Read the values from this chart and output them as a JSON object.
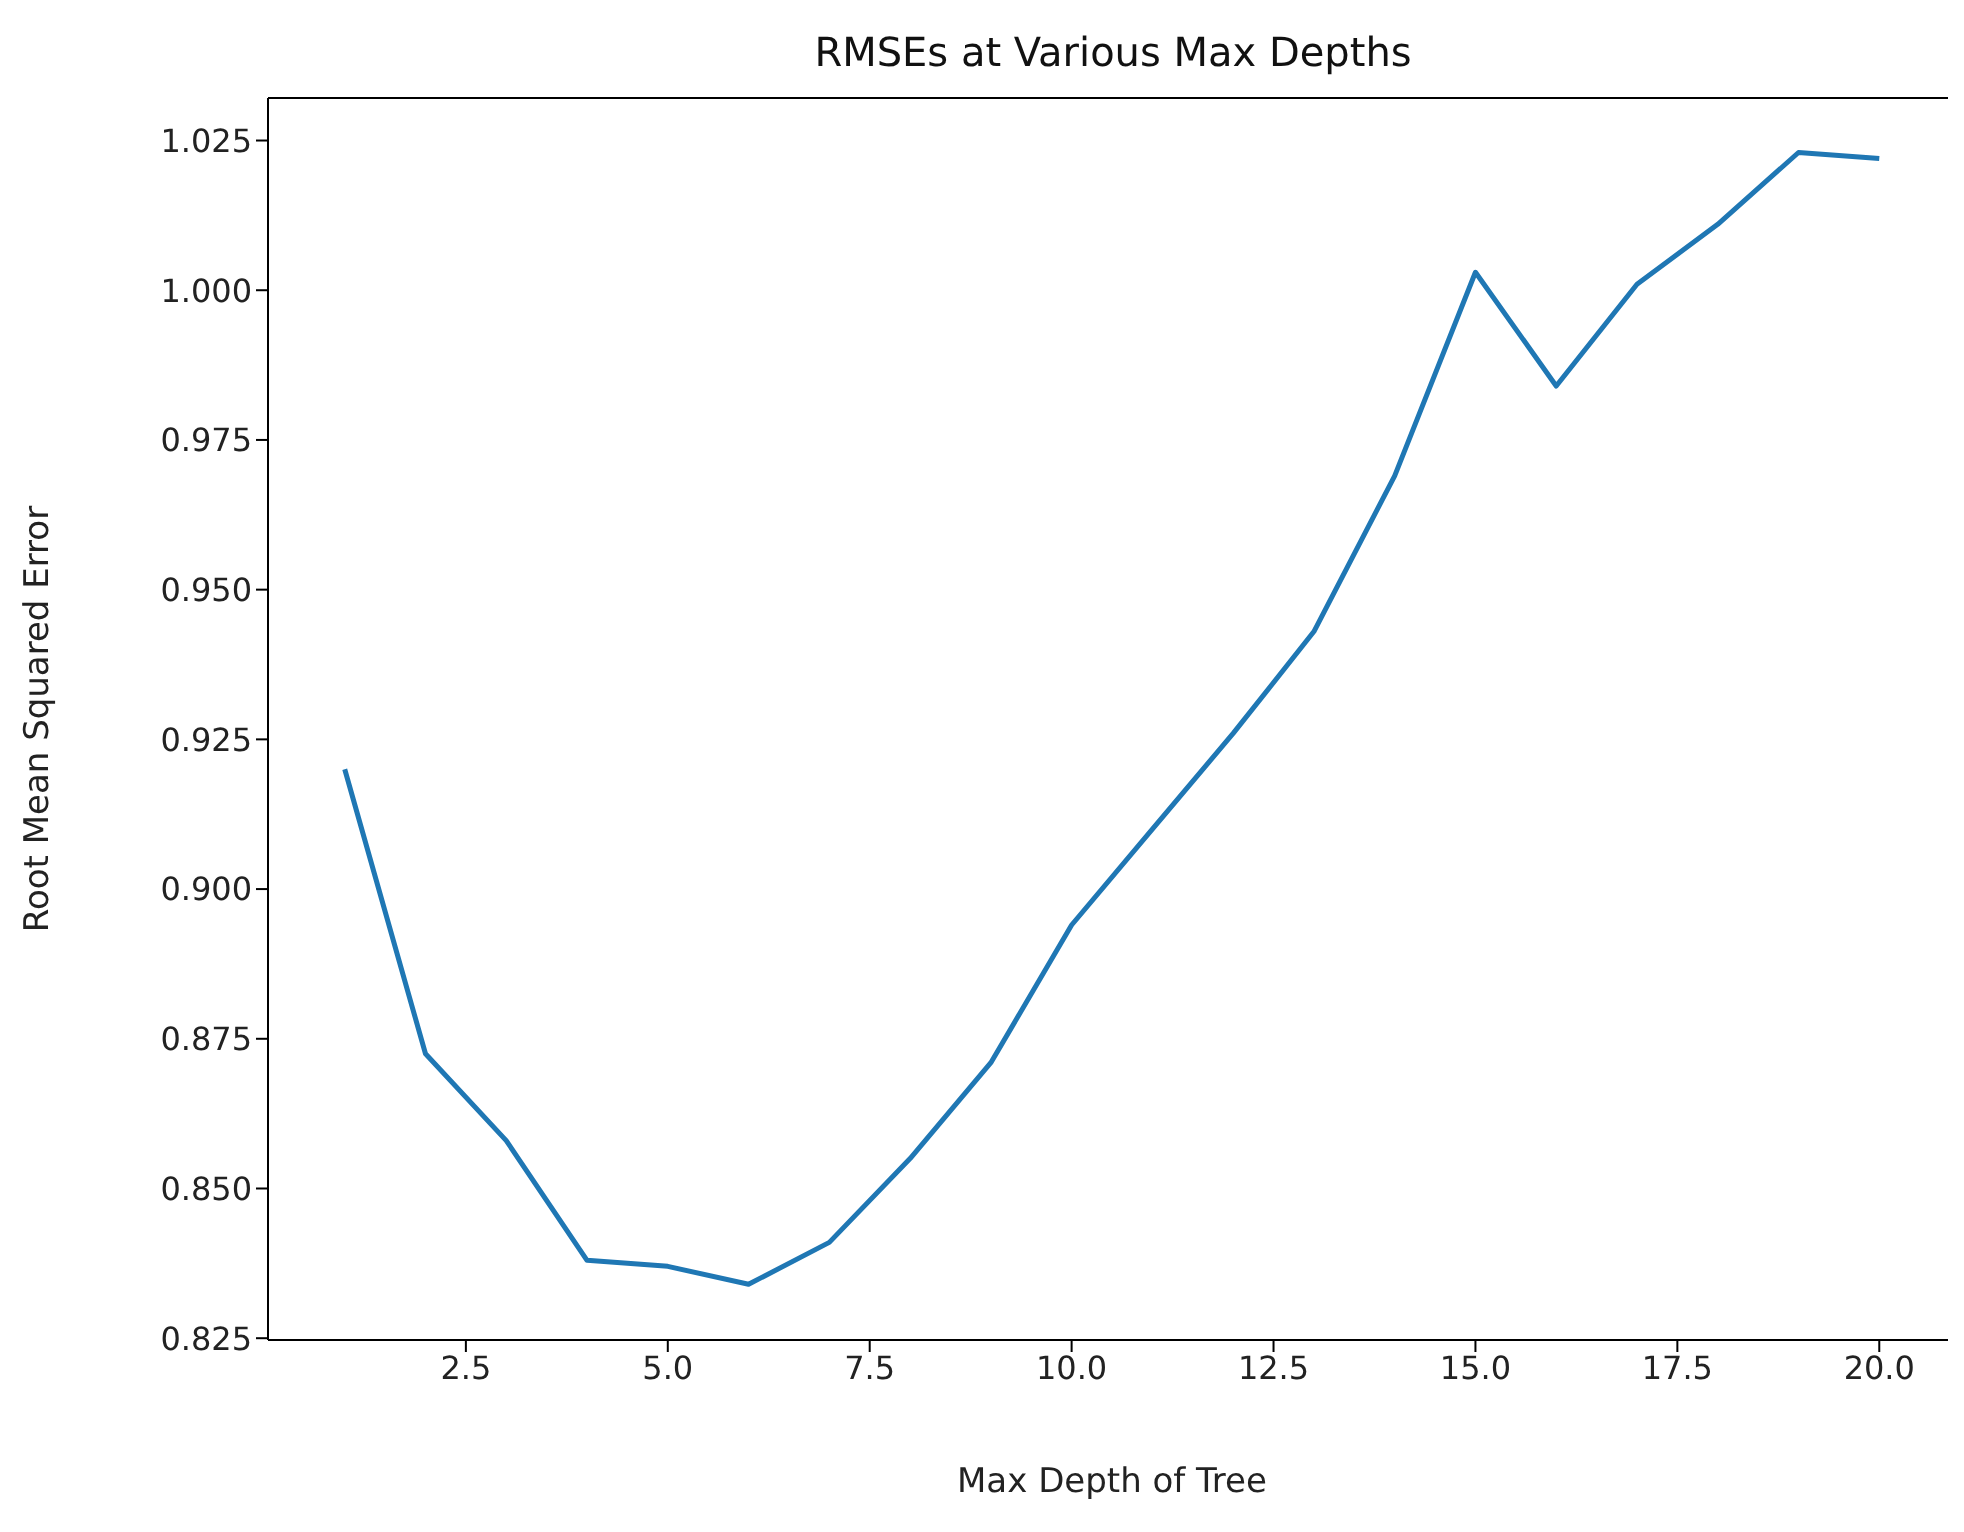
{
  "chart_data": {
    "type": "line",
    "title": "RMSEs at Various Max Depths",
    "xlabel": "Max Depth of Tree",
    "ylabel": "Root Mean Squared Error",
    "x": [
      1,
      2,
      3,
      4,
      5,
      6,
      7,
      8,
      9,
      10,
      11,
      12,
      13,
      14,
      15,
      16,
      17,
      18,
      19,
      20
    ],
    "series": [
      {
        "color": "#1f77b4",
        "values": [
          0.92,
          0.8725,
          0.858,
          0.838,
          0.837,
          0.834,
          0.841,
          0.855,
          0.871,
          0.894,
          0.91,
          0.926,
          0.943,
          0.969,
          1.003,
          0.984,
          1.001,
          1.011,
          1.023,
          1.022
        ]
      }
    ],
    "xlim": [
      0.05,
      20.95
    ],
    "xticks": [
      {
        "value": 2.5,
        "label": "2.5"
      },
      {
        "value": 5,
        "label": "5.0"
      },
      {
        "value": 7.5,
        "label": "7.5"
      },
      {
        "value": 10,
        "label": "10.0"
      },
      {
        "value": 12.5,
        "label": "12.5"
      },
      {
        "value": 15,
        "label": "15.0"
      },
      {
        "value": 17.5,
        "label": "17.5"
      },
      {
        "value": 20,
        "label": "20.0"
      }
    ],
    "ylim": [
      0.8247,
      1.0321
    ],
    "yticks": [
      {
        "value": 0.825,
        "label": "0.825"
      },
      {
        "value": 0.85,
        "label": "0.850"
      },
      {
        "value": 0.875,
        "label": "0.875"
      },
      {
        "value": 0.9,
        "label": "0.900"
      },
      {
        "value": 0.925,
        "label": "0.925"
      },
      {
        "value": 0.95,
        "label": "0.950"
      },
      {
        "value": 0.975,
        "label": "0.975"
      },
      {
        "value": 1.0,
        "label": "1.000"
      },
      {
        "value": 1.025,
        "label": "1.025"
      }
    ],
    "grid": false,
    "legend": false,
    "marker": "none",
    "line_style": "solid"
  }
}
